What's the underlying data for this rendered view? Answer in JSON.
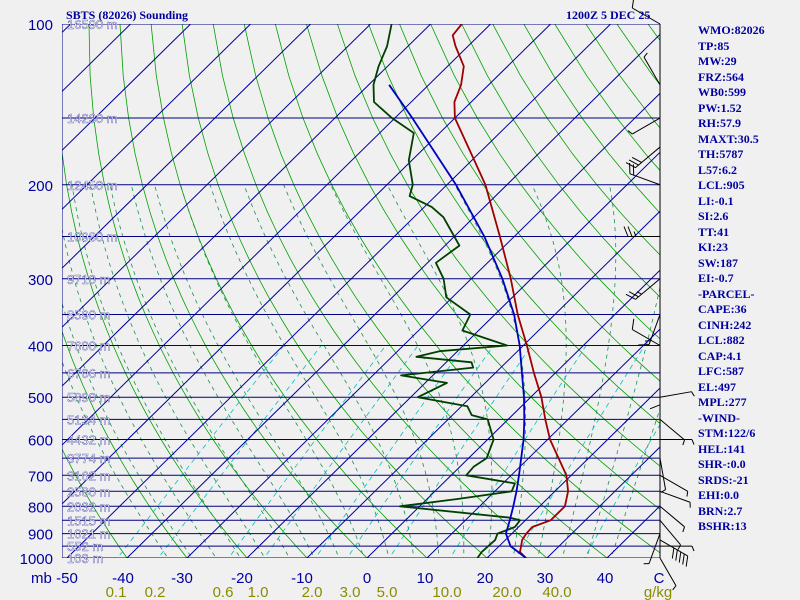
{
  "header": {
    "title_left": "SBTS (82026) Sounding",
    "title_right": "1200Z  5 DEC 25"
  },
  "stats": [
    "WMO:82026",
    "TP:85",
    "MW:29",
    "FRZ:564",
    "WB0:599",
    "PW:1.52",
    "RH:57.9",
    "MAXT:30.5",
    "TH:5787",
    "L57:6.2",
    "LCL:905",
    "LI:-0.1",
    "SI:2.6",
    "TT:41",
    "KI:23",
    "SW:187",
    "EI:-0.7",
    "-PARCEL-",
    "CAPE:36",
    "CINH:242",
    "LCL:882",
    "CAP:4.1",
    "LFC:587",
    "EL:497",
    "MPL:277",
    "-WIND-",
    "STM:122/6",
    "HEL:141",
    "SHR-:0.0",
    "SRDS:-21",
    "EHI:0.0",
    "BRN:2.7",
    "BSHR:13"
  ],
  "chart_data": {
    "type": "skew-t",
    "x_axis_label_pressure": "mb",
    "x_ticks_temperature": [
      "-50",
      "-40",
      "-30",
      "-20",
      "-10",
      "0",
      "10",
      "20",
      "30",
      "40",
      "C"
    ],
    "mixing_ratio_labels": [
      "0.1",
      "0.2",
      "0.6",
      "1.0",
      "2.0",
      "3.0",
      "5.0",
      "10.0",
      "20.0",
      "40.0",
      "g/kg"
    ],
    "pressure_labels": [
      {
        "p": 100,
        "label": "100"
      },
      {
        "p": 200,
        "label": "200"
      },
      {
        "p": 300,
        "label": "300"
      },
      {
        "p": 400,
        "label": "400"
      },
      {
        "p": 500,
        "label": "500"
      },
      {
        "p": 600,
        "label": "600"
      },
      {
        "p": 700,
        "label": "700"
      },
      {
        "p": 800,
        "label": "800"
      },
      {
        "p": 900,
        "label": "900"
      },
      {
        "p": 1000,
        "label": "1000"
      }
    ],
    "height_labels": [
      {
        "p": 100,
        "label": "16590 m"
      },
      {
        "p": 150,
        "label": "14230 m"
      },
      {
        "p": 200,
        "label": "12450 m"
      },
      {
        "p": 250,
        "label": "10980 m"
      },
      {
        "p": 300,
        "label": "9710 m"
      },
      {
        "p": 350,
        "label": "8590 m"
      },
      {
        "p": 400,
        "label": "7600 m"
      },
      {
        "p": 450,
        "label": "6706 m"
      },
      {
        "p": 500,
        "label": "5890 m"
      },
      {
        "p": 550,
        "label": "5134 m"
      },
      {
        "p": 600,
        "label": "4432 m"
      },
      {
        "p": 650,
        "label": "3774 m"
      },
      {
        "p": 700,
        "label": "3162 m"
      },
      {
        "p": 750,
        "label": "2580 m"
      },
      {
        "p": 800,
        "label": "2032 m"
      },
      {
        "p": 850,
        "label": "1515 m"
      },
      {
        "p": 900,
        "label": "1021 m"
      },
      {
        "p": 950,
        "label": "552 m"
      },
      {
        "p": 1000,
        "label": "103 m"
      }
    ],
    "temperature_profile": [
      {
        "p": 1000,
        "t": 26.5
      },
      {
        "p": 975,
        "t": 24.5
      },
      {
        "p": 925,
        "t": 22.8
      },
      {
        "p": 900,
        "t": 22.4
      },
      {
        "p": 875,
        "t": 22.3
      },
      {
        "p": 850,
        "t": 24.2
      },
      {
        "p": 800,
        "t": 24.2
      },
      {
        "p": 750,
        "t": 22.2
      },
      {
        "p": 700,
        "t": 19.2
      },
      {
        "p": 600,
        "t": 10.4
      },
      {
        "p": 550,
        "t": 6.2
      },
      {
        "p": 500,
        "t": 1.8
      },
      {
        "p": 450,
        "t": -3.6
      },
      {
        "p": 400,
        "t": -9.4
      },
      {
        "p": 350,
        "t": -16.2
      },
      {
        "p": 300,
        "t": -23.4
      },
      {
        "p": 250,
        "t": -32.4
      },
      {
        "p": 200,
        "t": -43.6
      },
      {
        "p": 175,
        "t": -51.2
      },
      {
        "p": 150,
        "t": -60.0
      },
      {
        "p": 140,
        "t": -62.8
      },
      {
        "p": 130,
        "t": -64.6
      },
      {
        "p": 120,
        "t": -67.3
      },
      {
        "p": 110,
        "t": -72.1
      },
      {
        "p": 105,
        "t": -74.4
      },
      {
        "p": 100,
        "t": -74.8
      }
    ],
    "dewpoint_profile": [
      {
        "p": 1000,
        "t": 18.4
      },
      {
        "p": 975,
        "t": 18.1
      },
      {
        "p": 925,
        "t": 18.3
      },
      {
        "p": 900,
        "t": 17.6
      },
      {
        "p": 875,
        "t": 19.4
      },
      {
        "p": 850,
        "t": 19.1
      },
      {
        "p": 840,
        "t": 16.9
      },
      {
        "p": 800,
        "t": -3.3
      },
      {
        "p": 775,
        "t": 5.2
      },
      {
        "p": 750,
        "t": 12.8
      },
      {
        "p": 725,
        "t": 12.0
      },
      {
        "p": 700,
        "t": 2.5
      },
      {
        "p": 675,
        "t": 2.3
      },
      {
        "p": 650,
        "t": 3.0
      },
      {
        "p": 600,
        "t": 1.0
      },
      {
        "p": 550,
        "t": -3.4
      },
      {
        "p": 540,
        "t": -6.8
      },
      {
        "p": 520,
        "t": -9.0
      },
      {
        "p": 500,
        "t": -18.8
      },
      {
        "p": 470,
        "t": -16.4
      },
      {
        "p": 455,
        "t": -25.3
      },
      {
        "p": 440,
        "t": -14.6
      },
      {
        "p": 430,
        "t": -15.8
      },
      {
        "p": 420,
        "t": -25.9
      },
      {
        "p": 410,
        "t": -23.0
      },
      {
        "p": 400,
        "t": -12.7
      },
      {
        "p": 375,
        "t": -22.7
      },
      {
        "p": 350,
        "t": -24.1
      },
      {
        "p": 325,
        "t": -31.0
      },
      {
        "p": 300,
        "t": -34.6
      },
      {
        "p": 280,
        "t": -38.6
      },
      {
        "p": 260,
        "t": -37.6
      },
      {
        "p": 250,
        "t": -40.0
      },
      {
        "p": 230,
        "t": -45.1
      },
      {
        "p": 220,
        "t": -48.8
      },
      {
        "p": 210,
        "t": -54.3
      },
      {
        "p": 200,
        "t": -55.7
      },
      {
        "p": 180,
        "t": -60.5
      },
      {
        "p": 160,
        "t": -64.3
      },
      {
        "p": 150,
        "t": -70.5
      },
      {
        "p": 140,
        "t": -76.2
      },
      {
        "p": 130,
        "t": -79.2
      },
      {
        "p": 120,
        "t": -81.5
      },
      {
        "p": 110,
        "t": -83.5
      },
      {
        "p": 100,
        "t": -86.5
      }
    ],
    "parcel_profile": [
      {
        "p": 1000,
        "t": 26.5
      },
      {
        "p": 950,
        "t": 21.9
      },
      {
        "p": 900,
        "t": 19.0
      },
      {
        "p": 850,
        "t": 17.4
      },
      {
        "p": 800,
        "t": 15.6
      },
      {
        "p": 750,
        "t": 13.6
      },
      {
        "p": 700,
        "t": 11.3
      },
      {
        "p": 600,
        "t": 6.0
      },
      {
        "p": 550,
        "t": 2.7
      },
      {
        "p": 500,
        "t": -1.1
      },
      {
        "p": 450,
        "t": -5.6
      },
      {
        "p": 400,
        "t": -10.6
      },
      {
        "p": 350,
        "t": -16.8
      },
      {
        "p": 300,
        "t": -24.8
      },
      {
        "p": 250,
        "t": -35.0
      },
      {
        "p": 200,
        "t": -48.5
      },
      {
        "p": 150,
        "t": -67.1
      },
      {
        "p": 130,
        "t": -76.6
      }
    ],
    "winds": [
      {
        "p": 1000,
        "dir": 150,
        "spd": 5
      },
      {
        "p": 950,
        "dir": 90,
        "spd": 5
      },
      {
        "p": 925,
        "dir": 120,
        "spd": 50
      },
      {
        "p": 900,
        "dir": 200,
        "spd": 5
      },
      {
        "p": 850,
        "dir": 140,
        "spd": 5
      },
      {
        "p": 800,
        "dir": 130,
        "spd": 5
      },
      {
        "p": 750,
        "dir": 110,
        "spd": 5
      },
      {
        "p": 700,
        "dir": 120,
        "spd": 5
      },
      {
        "p": 650,
        "dir": 170,
        "spd": 5
      },
      {
        "p": 600,
        "dir": 90,
        "spd": 5
      },
      {
        "p": 550,
        "dir": 130,
        "spd": 5
      },
      {
        "p": 500,
        "dir": 80,
        "spd": 5
      },
      {
        "p": 450,
        "dir": 180,
        "spd": 10
      },
      {
        "p": 400,
        "dir": 300,
        "spd": 10
      },
      {
        "p": 350,
        "dir": 200,
        "spd": 15
      },
      {
        "p": 300,
        "dir": 230,
        "spd": 25
      },
      {
        "p": 250,
        "dir": 270,
        "spd": 25
      },
      {
        "p": 200,
        "dir": 290,
        "spd": 20
      },
      {
        "p": 170,
        "dir": 230,
        "spd": 30
      },
      {
        "p": 150,
        "dir": 240,
        "spd": 5
      },
      {
        "p": 130,
        "dir": 330,
        "spd": 5
      },
      {
        "p": 100,
        "dir": 300,
        "spd": 10
      }
    ],
    "colors": {
      "background": "#f0f0f0",
      "isobar": "#000080",
      "isotherm": "#0000a0",
      "dry_adiabat": "#00a000",
      "moist_adiabat": "#1a9050",
      "mixing_ratio": "#00c0c0",
      "temperature": "#a00000",
      "dewpoint": "#004000",
      "parcel": "#0000c0",
      "pressure_label": "#0000a0",
      "height_label": "#ffffff",
      "temp_tick": "#0000a0",
      "mixing_label": "#8b8b00",
      "wind": "#000000"
    }
  }
}
